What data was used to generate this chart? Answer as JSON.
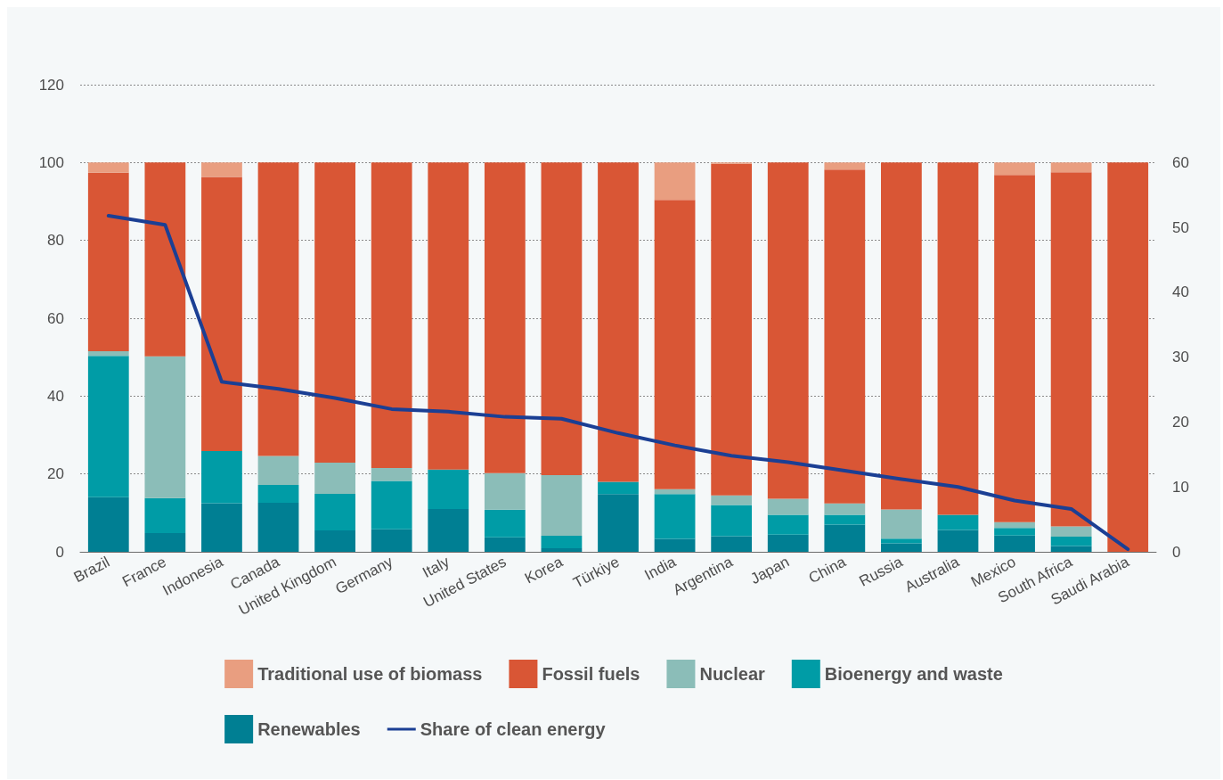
{
  "chart_data": {
    "type": "bar",
    "stacked": true,
    "categories": [
      "Brazil",
      "France",
      "Indonesia",
      "Canada",
      "United Kingdom",
      "Germany",
      "Italy",
      "United States",
      "Korea",
      "Türkiye",
      "India",
      "Argentina",
      "Japan",
      "China",
      "Russia",
      "Australia",
      "Mexico",
      "South Africa",
      "Saudi Arabia"
    ],
    "series": [
      {
        "name": "Renewables",
        "color": "#007f93",
        "values": [
          14.0,
          4.8,
          12.5,
          12.6,
          5.5,
          5.8,
          11.0,
          3.7,
          0.9,
          14.8,
          3.3,
          4.0,
          4.4,
          7.0,
          2.2,
          5.6,
          4.2,
          1.5,
          0
        ]
      },
      {
        "name": "Bioenergy and waste",
        "color": "#009ca6",
        "values": [
          36.3,
          9.0,
          13.4,
          4.6,
          9.4,
          12.4,
          10.1,
          7.1,
          3.2,
          3.2,
          11.5,
          8.0,
          5.1,
          2.5,
          1.2,
          3.9,
          1.9,
          2.4,
          0
        ]
      },
      {
        "name": "Nuclear",
        "color": "#8bbdb8",
        "values": [
          1.2,
          36.4,
          0,
          7.4,
          8.0,
          3.3,
          0,
          9.4,
          15.6,
          0,
          1.3,
          2.5,
          4.1,
          2.9,
          7.5,
          0,
          1.5,
          2.6,
          0
        ]
      },
      {
        "name": "Fossil fuels",
        "color": "#d95635",
        "values": [
          45.9,
          49.8,
          70.4,
          75.4,
          77.1,
          78.5,
          78.9,
          79.8,
          80.3,
          82.0,
          74.3,
          85.2,
          86.4,
          85.8,
          89.1,
          90.5,
          89.2,
          91.0,
          100
        ]
      },
      {
        "name": "Traditional use of biomass",
        "color": "#e99e80",
        "values": [
          2.6,
          0,
          3.7,
          0,
          0,
          0,
          0,
          0,
          0,
          0,
          9.6,
          0.3,
          0,
          1.8,
          0,
          0,
          3.2,
          2.5,
          0
        ]
      },
      {
        "name": "Share of clean energy",
        "type": "line",
        "axis": "y2",
        "color": "#1b3f94",
        "values": [
          51.8,
          50.4,
          26.2,
          25.1,
          23.7,
          22.0,
          21.6,
          20.8,
          20.5,
          18.3,
          16.4,
          14.8,
          13.8,
          12.5,
          11.2,
          10.0,
          7.9,
          6.6,
          0.4
        ]
      }
    ],
    "ylim": [
      0,
      120
    ],
    "yticks": [
      0,
      20,
      40,
      60,
      80,
      100,
      120
    ],
    "y2lim": [
      0,
      72
    ],
    "y2ticks": [
      0,
      10,
      20,
      30,
      40,
      50,
      60
    ],
    "grid": "y",
    "legend": "bottom",
    "marker": "none",
    "line_style": "solid"
  }
}
